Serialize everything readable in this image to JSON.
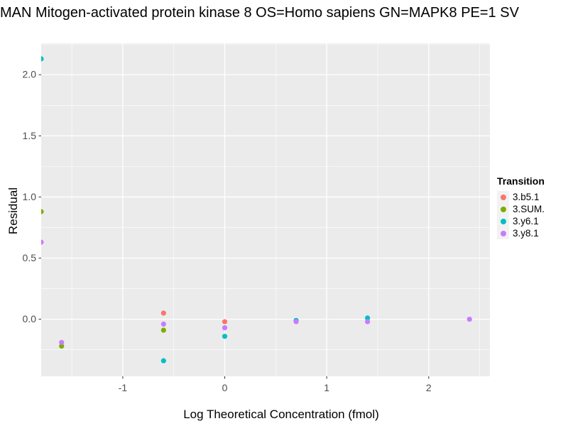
{
  "title": "MAN Mitogen-activated protein kinase 8 OS=Homo sapiens GN=MAPK8 PE=1 SV",
  "chart_data": {
    "type": "scatter",
    "title": "MAN Mitogen-activated protein kinase 8 OS=Homo sapiens GN=MAPK8 PE=1 SV",
    "xlabel": "Log Theoretical Concentration (fmol)",
    "ylabel": "Residual",
    "xlim": [
      -1.8,
      2.6
    ],
    "ylim": [
      -0.467,
      2.257
    ],
    "grid": true,
    "panel_bg": "#EBEBEB",
    "grid_color": "#FFFFFF",
    "tick_color": "#333333",
    "tick_label_color": "#4D4D4D",
    "x_ticks": [
      {
        "v": -1,
        "label": "-1"
      },
      {
        "v": 0,
        "label": "0"
      },
      {
        "v": 1,
        "label": "1"
      },
      {
        "v": 2,
        "label": "2"
      }
    ],
    "x_minor": [
      -1.5,
      -0.5,
      0.5,
      1.5,
      2.5
    ],
    "y_ticks": [
      {
        "v": 0.0,
        "label": "0.0"
      },
      {
        "v": 0.5,
        "label": "0.5"
      },
      {
        "v": 1.0,
        "label": "1.0"
      },
      {
        "v": 1.5,
        "label": "1.5"
      },
      {
        "v": 2.0,
        "label": "2.0"
      }
    ],
    "y_minor": [
      -0.25,
      0.25,
      0.75,
      1.25,
      1.75,
      2.25
    ],
    "legend_position": "right",
    "legend_title": "Transition",
    "legend_key_bg": "#F2F2F2",
    "point_radius": 3.6,
    "series": [
      {
        "name": "3.b5.1",
        "color": "#F8766D",
        "points": [
          {
            "x": -0.6,
            "y": 0.05
          },
          {
            "x": 0.0,
            "y": -0.02
          }
        ]
      },
      {
        "name": "3.SUM.",
        "color": "#7CAE00",
        "points": [
          {
            "x": -1.8,
            "y": 0.88,
            "clipped_at_left_edge": true
          },
          {
            "x": -1.6,
            "y": -0.22
          },
          {
            "x": -0.6,
            "y": -0.09
          }
        ]
      },
      {
        "name": "3.y6.1",
        "color": "#00BFC4",
        "points": [
          {
            "x": -1.8,
            "y": 2.13,
            "clipped_at_left_edge": true
          },
          {
            "x": -0.6,
            "y": -0.34
          },
          {
            "x": 0.0,
            "y": -0.14
          },
          {
            "x": 0.7,
            "y": -0.01
          },
          {
            "x": 1.4,
            "y": 0.01
          }
        ]
      },
      {
        "name": "3.y8.1",
        "color": "#C77CFF",
        "points": [
          {
            "x": -1.8,
            "y": 0.63,
            "clipped_at_left_edge": true
          },
          {
            "x": -1.6,
            "y": -0.19
          },
          {
            "x": -0.6,
            "y": -0.04
          },
          {
            "x": 0.0,
            "y": -0.07
          },
          {
            "x": 0.7,
            "y": -0.02
          },
          {
            "x": 1.4,
            "y": -0.02
          },
          {
            "x": 2.4,
            "y": 0.0
          }
        ]
      }
    ]
  }
}
